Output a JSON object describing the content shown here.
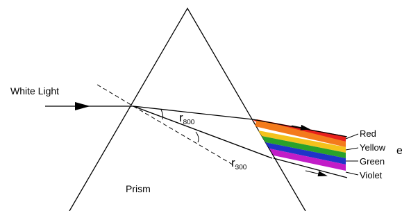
{
  "incoming_label": "White Light",
  "prism_label": "Prism",
  "angles": [
    {
      "symbol": "r",
      "subscript": "800"
    },
    {
      "symbol": "r",
      "subscript": "300"
    }
  ],
  "colors": [
    "Red",
    "Yellow",
    "Green",
    "Violet"
  ],
  "edge_fragment": "e"
}
